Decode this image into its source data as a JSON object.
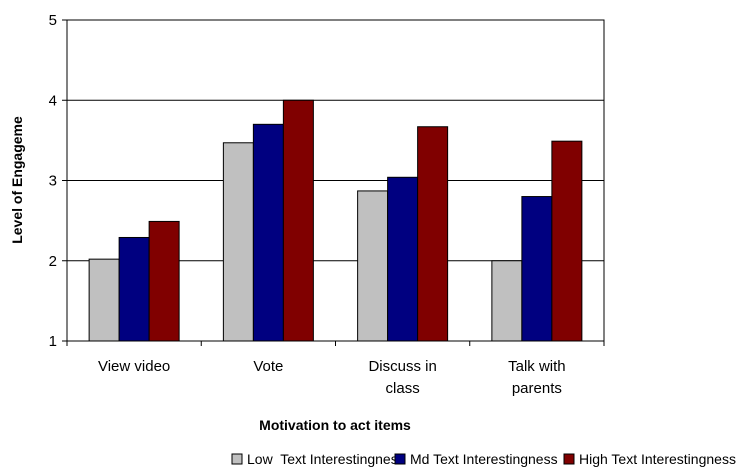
{
  "chart_data": {
    "type": "bar",
    "title": "",
    "xlabel": "Motivation to act items",
    "ylabel": "Level of Engageme",
    "ylim": [
      1,
      5
    ],
    "yticks": [
      "1",
      "2",
      "3",
      "4",
      "5"
    ],
    "grid": true,
    "legend_position": "bottom",
    "categories": [
      [
        "View video"
      ],
      [
        "Vote"
      ],
      [
        "Discuss in",
        "class"
      ],
      [
        "Talk with",
        "parents"
      ]
    ],
    "series": [
      {
        "name": "Low  Text Interestingness",
        "color": "#c0c0c0",
        "values": [
          2.02,
          3.47,
          2.87,
          2.0
        ]
      },
      {
        "name": "Md Text Interestingness",
        "color": "#000080",
        "values": [
          2.29,
          3.7,
          3.04,
          2.8
        ]
      },
      {
        "name": "High Text Interestingness",
        "color": "#800000",
        "values": [
          2.49,
          4.0,
          3.67,
          3.49
        ]
      }
    ]
  }
}
